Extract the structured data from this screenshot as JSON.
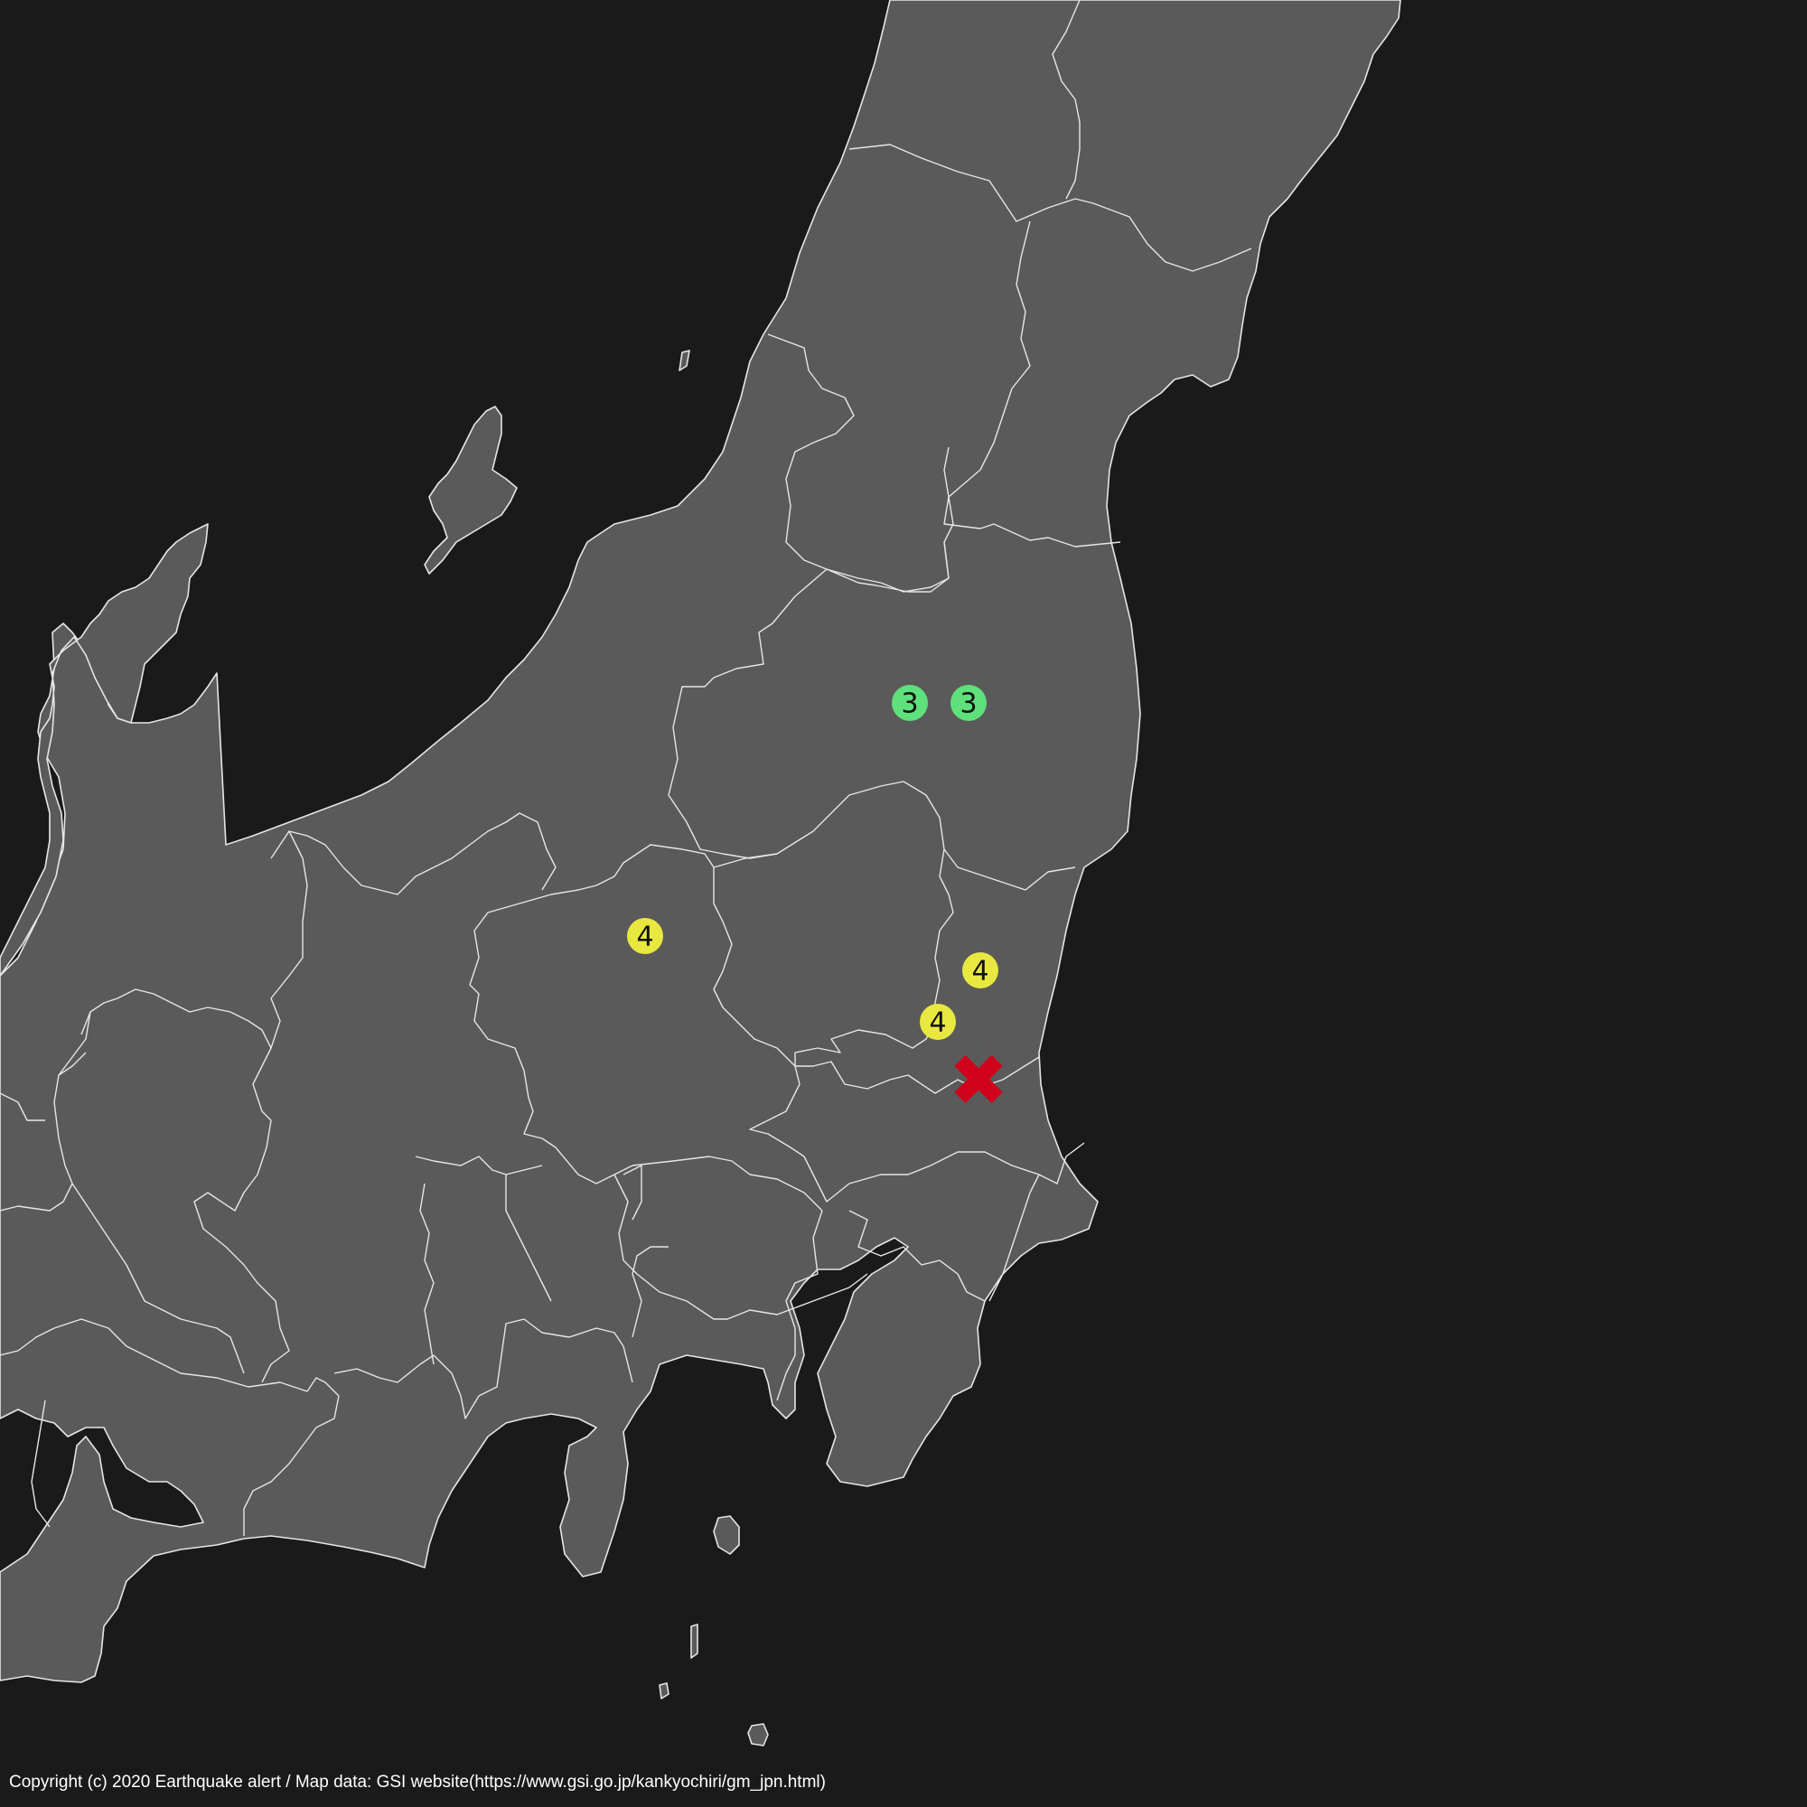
{
  "map": {
    "background_color": "#1a1a1a",
    "land_color": "#5a5a5a",
    "border_color": "#e6e6e6",
    "epicenter": {
      "symbol": "✖",
      "color": "#d0021b",
      "icon": "x-mark-icon"
    },
    "intensity_markers": [
      {
        "label": "3",
        "color": "#5ee07a"
      },
      {
        "label": "3",
        "color": "#5ee07a"
      },
      {
        "label": "4",
        "color": "#e8e840"
      },
      {
        "label": "4",
        "color": "#e8e840"
      },
      {
        "label": "4",
        "color": "#e8e840"
      }
    ]
  },
  "footer": {
    "copyright": "Copyright (c) 2020 Earthquake alert / Map data: GSI website(https://www.gsi.go.jp/kankyochiri/gm_jpn.html)"
  }
}
